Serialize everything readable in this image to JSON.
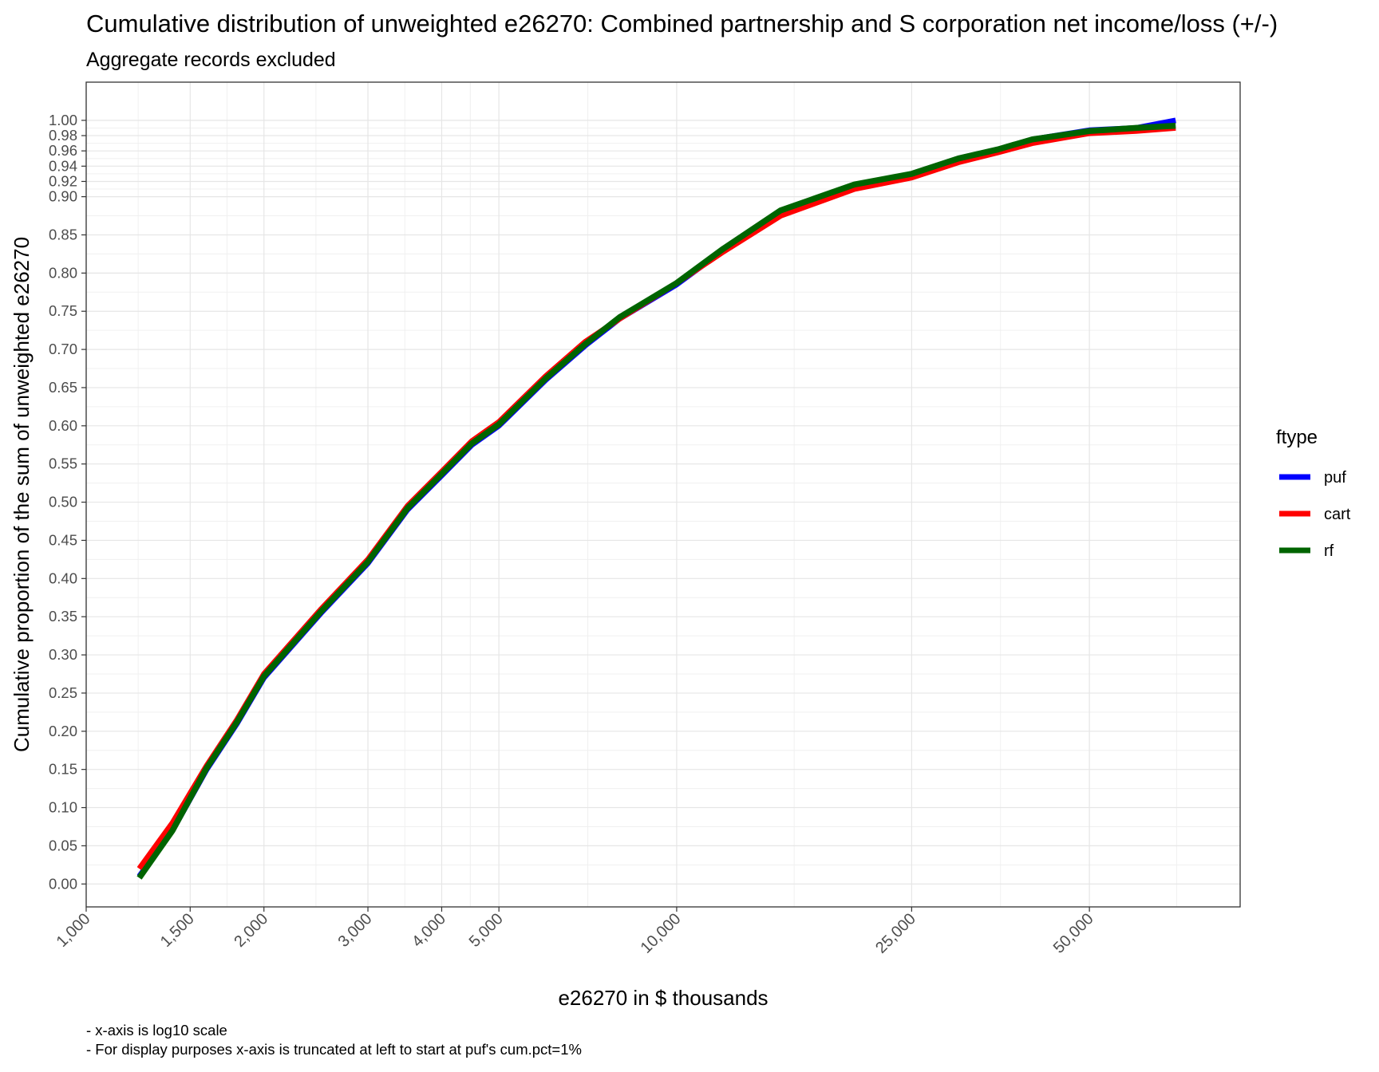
{
  "chart_data": {
    "type": "line",
    "title": "Cumulative distribution of unweighted e26270: Combined partnership and S corporation net income/loss (+/-)",
    "subtitle": "Aggregate records excluded",
    "xlabel": "e26270 in $ thousands",
    "ylabel": "Cumulative proportion of the sum of unweighted e26270",
    "x_scale": "log10",
    "xlim": [
      1000,
      90000
    ],
    "ylim": [
      -0.03,
      1.05
    ],
    "x_ticks": [
      1000,
      1500,
      2000,
      3000,
      4000,
      5000,
      10000,
      25000,
      50000
    ],
    "x_tick_labels": [
      "1,000",
      "1,500",
      "2,000",
      "3,000",
      "4,000",
      "5,000",
      "10,000",
      "25,000",
      "50,000"
    ],
    "y_ticks": [
      0,
      0.05,
      0.1,
      0.15,
      0.2,
      0.25,
      0.3,
      0.35,
      0.4,
      0.45,
      0.5,
      0.55,
      0.6,
      0.65,
      0.7,
      0.75,
      0.8,
      0.85,
      0.9,
      0.92,
      0.94,
      0.96,
      0.98,
      1.0
    ],
    "y_tick_labels": [
      "0.00",
      "0.05",
      "0.10",
      "0.15",
      "0.20",
      "0.25",
      "0.30",
      "0.35",
      "0.40",
      "0.45",
      "0.50",
      "0.55",
      "0.60",
      "0.65",
      "0.70",
      "0.75",
      "0.80",
      "0.85",
      "0.90",
      "0.92",
      "0.94",
      "0.96",
      "0.98",
      "1.00"
    ],
    "grid": true,
    "legend": {
      "title": "ftype",
      "position": "right"
    },
    "series": [
      {
        "name": "puf",
        "color": "#0000ff",
        "points": [
          [
            1230,
            0.01
          ],
          [
            1400,
            0.07
          ],
          [
            1600,
            0.15
          ],
          [
            1800,
            0.21
          ],
          [
            2000,
            0.27
          ],
          [
            2500,
            0.355
          ],
          [
            3000,
            0.42
          ],
          [
            3500,
            0.49
          ],
          [
            4000,
            0.535
          ],
          [
            4500,
            0.575
          ],
          [
            5000,
            0.6
          ],
          [
            6000,
            0.66
          ],
          [
            7000,
            0.705
          ],
          [
            8000,
            0.74
          ],
          [
            10000,
            0.785
          ],
          [
            12000,
            0.83
          ],
          [
            15000,
            0.88
          ],
          [
            20000,
            0.915
          ],
          [
            25000,
            0.93
          ],
          [
            30000,
            0.95
          ],
          [
            35000,
            0.962
          ],
          [
            40000,
            0.975
          ],
          [
            50000,
            0.987
          ],
          [
            60000,
            0.99
          ],
          [
            70000,
            1.0
          ]
        ]
      },
      {
        "name": "cart",
        "color": "#ff0000",
        "points": [
          [
            1230,
            0.02
          ],
          [
            1400,
            0.08
          ],
          [
            1600,
            0.155
          ],
          [
            1800,
            0.215
          ],
          [
            2000,
            0.275
          ],
          [
            2500,
            0.36
          ],
          [
            3000,
            0.425
          ],
          [
            3500,
            0.495
          ],
          [
            4000,
            0.54
          ],
          [
            4500,
            0.58
          ],
          [
            5000,
            0.605
          ],
          [
            6000,
            0.665
          ],
          [
            7000,
            0.71
          ],
          [
            8000,
            0.74
          ],
          [
            10000,
            0.787
          ],
          [
            12000,
            0.828
          ],
          [
            15000,
            0.875
          ],
          [
            20000,
            0.91
          ],
          [
            25000,
            0.925
          ],
          [
            30000,
            0.945
          ],
          [
            35000,
            0.958
          ],
          [
            40000,
            0.97
          ],
          [
            50000,
            0.983
          ],
          [
            60000,
            0.986
          ],
          [
            70000,
            0.99
          ]
        ]
      },
      {
        "name": "rf",
        "color": "#006400",
        "points": [
          [
            1230,
            0.008
          ],
          [
            1400,
            0.07
          ],
          [
            1600,
            0.152
          ],
          [
            1800,
            0.212
          ],
          [
            2000,
            0.272
          ],
          [
            2500,
            0.357
          ],
          [
            3000,
            0.422
          ],
          [
            3500,
            0.492
          ],
          [
            4000,
            0.537
          ],
          [
            4500,
            0.577
          ],
          [
            5000,
            0.602
          ],
          [
            6000,
            0.662
          ],
          [
            7000,
            0.707
          ],
          [
            8000,
            0.742
          ],
          [
            10000,
            0.787
          ],
          [
            12000,
            0.832
          ],
          [
            15000,
            0.882
          ],
          [
            20000,
            0.916
          ],
          [
            25000,
            0.93
          ],
          [
            30000,
            0.95
          ],
          [
            35000,
            0.962
          ],
          [
            40000,
            0.975
          ],
          [
            50000,
            0.986
          ],
          [
            60000,
            0.99
          ],
          [
            70000,
            0.993
          ]
        ]
      }
    ],
    "caption": [
      "- x-axis is log10 scale",
      "- For display purposes x-axis is truncated at left to start at puf's cum.pct=1%"
    ]
  }
}
